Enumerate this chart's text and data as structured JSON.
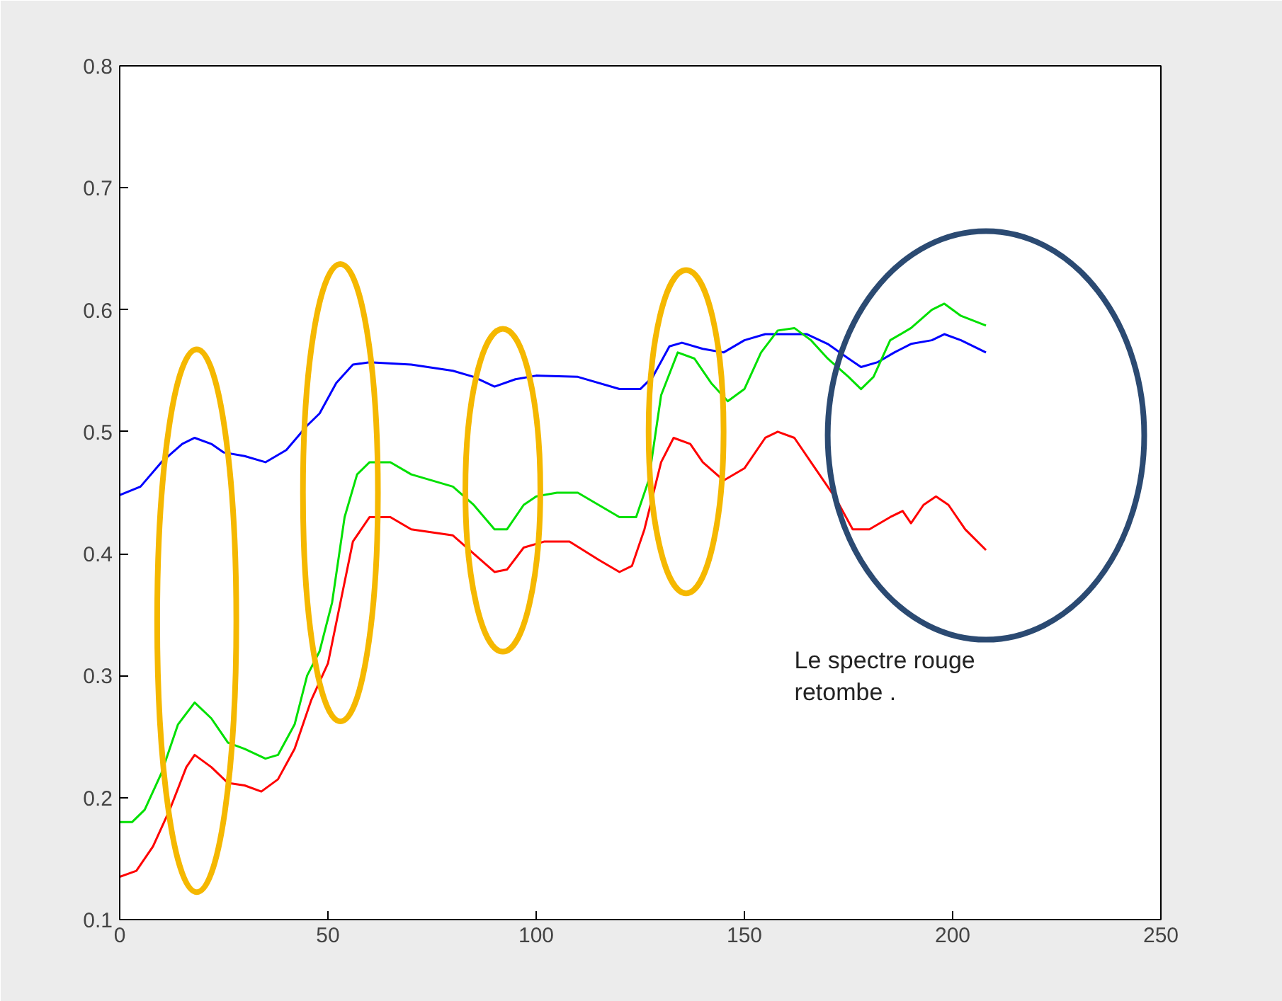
{
  "chart_data": {
    "type": "line",
    "xlim": [
      0,
      250
    ],
    "ylim": [
      0.1,
      0.8
    ],
    "xticks": [
      0,
      50,
      100,
      150,
      200,
      250
    ],
    "yticks": [
      0.1,
      0.2,
      0.3,
      0.4,
      0.5,
      0.6,
      0.7,
      0.8
    ],
    "grid": false,
    "annotations": [
      "Le spectre rouge\nretombe ."
    ],
    "series": [
      {
        "color": "#0000ff",
        "x": [
          0,
          5,
          10,
          15,
          18,
          22,
          25,
          30,
          35,
          40,
          45,
          48,
          52,
          56,
          60,
          70,
          80,
          85,
          90,
          95,
          100,
          110,
          120,
          125,
          128,
          132,
          135,
          140,
          145,
          150,
          155,
          160,
          165,
          170,
          175,
          178,
          182,
          186,
          190,
          195,
          198,
          202,
          208
        ],
        "values": [
          0.448,
          0.455,
          0.475,
          0.49,
          0.495,
          0.49,
          0.483,
          0.48,
          0.475,
          0.485,
          0.505,
          0.515,
          0.54,
          0.555,
          0.557,
          0.555,
          0.55,
          0.545,
          0.537,
          0.543,
          0.546,
          0.545,
          0.535,
          0.535,
          0.545,
          0.57,
          0.573,
          0.568,
          0.565,
          0.575,
          0.58,
          0.58,
          0.58,
          0.572,
          0.56,
          0.553,
          0.557,
          0.565,
          0.572,
          0.575,
          0.58,
          0.575,
          0.565
        ]
      },
      {
        "color": "#00e000",
        "x": [
          0,
          3,
          6,
          10,
          14,
          18,
          22,
          26,
          30,
          35,
          38,
          42,
          45,
          48,
          51,
          54,
          57,
          60,
          65,
          70,
          80,
          85,
          90,
          93,
          97,
          100,
          105,
          110,
          115,
          120,
          124,
          127,
          130,
          134,
          138,
          142,
          146,
          150,
          154,
          158,
          162,
          166,
          170,
          175,
          178,
          181,
          185,
          190,
          195,
          198,
          202,
          208
        ],
        "values": [
          0.18,
          0.18,
          0.19,
          0.22,
          0.26,
          0.278,
          0.265,
          0.245,
          0.24,
          0.232,
          0.235,
          0.26,
          0.3,
          0.32,
          0.36,
          0.43,
          0.465,
          0.475,
          0.475,
          0.465,
          0.455,
          0.44,
          0.42,
          0.42,
          0.44,
          0.447,
          0.45,
          0.45,
          0.44,
          0.43,
          0.43,
          0.46,
          0.53,
          0.565,
          0.56,
          0.54,
          0.525,
          0.535,
          0.565,
          0.583,
          0.585,
          0.575,
          0.56,
          0.545,
          0.535,
          0.545,
          0.575,
          0.585,
          0.6,
          0.605,
          0.595,
          0.587
        ]
      },
      {
        "color": "#ff0000",
        "x": [
          0,
          4,
          8,
          12,
          16,
          18,
          22,
          26,
          30,
          34,
          38,
          42,
          46,
          50,
          53,
          56,
          60,
          65,
          70,
          80,
          85,
          90,
          93,
          97,
          102,
          108,
          115,
          120,
          123,
          126,
          130,
          133,
          137,
          140,
          145,
          150,
          155,
          158,
          162,
          167,
          172,
          176,
          180,
          185,
          188,
          190,
          193,
          196,
          199,
          203,
          208
        ],
        "values": [
          0.135,
          0.14,
          0.16,
          0.19,
          0.225,
          0.235,
          0.225,
          0.212,
          0.21,
          0.205,
          0.215,
          0.24,
          0.28,
          0.31,
          0.36,
          0.41,
          0.43,
          0.43,
          0.42,
          0.415,
          0.4,
          0.385,
          0.387,
          0.405,
          0.41,
          0.41,
          0.395,
          0.385,
          0.39,
          0.42,
          0.475,
          0.495,
          0.49,
          0.475,
          0.46,
          0.47,
          0.495,
          0.5,
          0.495,
          0.47,
          0.445,
          0.42,
          0.42,
          0.43,
          0.435,
          0.425,
          0.44,
          0.447,
          0.44,
          0.42,
          0.403
        ]
      }
    ]
  }
}
